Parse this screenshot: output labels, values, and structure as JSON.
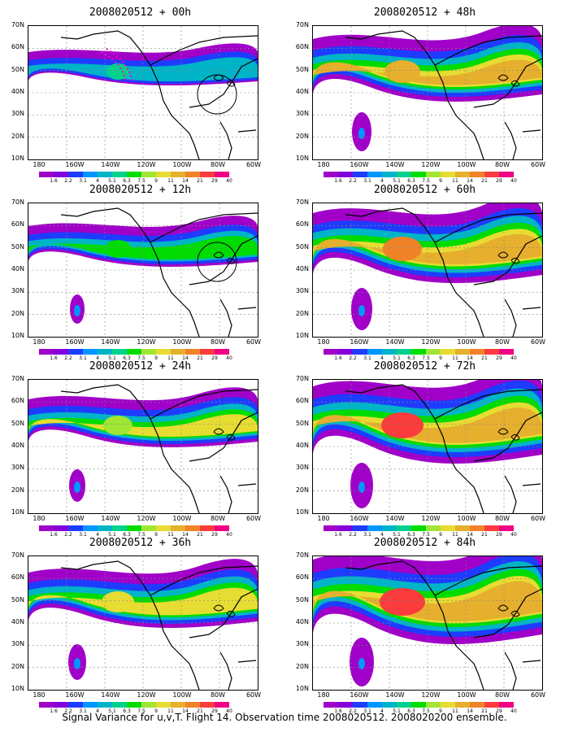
{
  "caption": "Signal Variance for u,v,T. Flight 14. Observation time 2008020512. 2008020200 ensemble.",
  "lat_labels": [
    "70N",
    "60N",
    "50N",
    "40N",
    "30N",
    "20N",
    "10N"
  ],
  "lon_labels": [
    "180",
    "160W",
    "140W",
    "120W",
    "100W",
    "80W",
    "60W"
  ],
  "colorbar": {
    "labels": [
      "1.6",
      "2.2",
      "3.1",
      "4",
      "5.1",
      "6.3",
      "7.5",
      "9",
      "11",
      "14",
      "21",
      "29",
      "40"
    ],
    "colors": [
      "#a000c8",
      "#8200dc",
      "#1e3cff",
      "#0096ff",
      "#00b4c8",
      "#00d28c",
      "#00dc00",
      "#a0e632",
      "#e6dc32",
      "#e6af2d",
      "#f08228",
      "#fa3c3c",
      "#f00082"
    ]
  },
  "panels": [
    {
      "title": "2008020512 + 00h",
      "level": 0,
      "col": 0,
      "row": 0,
      "circle": "ne",
      "track": true
    },
    {
      "title": "2008020512 + 12h",
      "level": 1,
      "col": 0,
      "row": 1,
      "circle": "ne2",
      "track": false
    },
    {
      "title": "2008020512 + 24h",
      "level": 2,
      "col": 0,
      "row": 2,
      "circle": "",
      "track": false
    },
    {
      "title": "2008020512 + 36h",
      "level": 3,
      "col": 0,
      "row": 3,
      "circle": "",
      "track": false
    },
    {
      "title": "2008020512 + 48h",
      "level": 4,
      "col": 1,
      "row": 0,
      "circle": "",
      "track": false
    },
    {
      "title": "2008020512 + 60h",
      "level": 5,
      "col": 1,
      "row": 1,
      "circle": "",
      "track": false
    },
    {
      "title": "2008020512 + 72h",
      "level": 6,
      "col": 1,
      "row": 2,
      "circle": "",
      "track": false
    },
    {
      "title": "2008020512 + 84h",
      "level": 7,
      "col": 1,
      "row": 3,
      "circle": "",
      "track": false
    }
  ]
}
